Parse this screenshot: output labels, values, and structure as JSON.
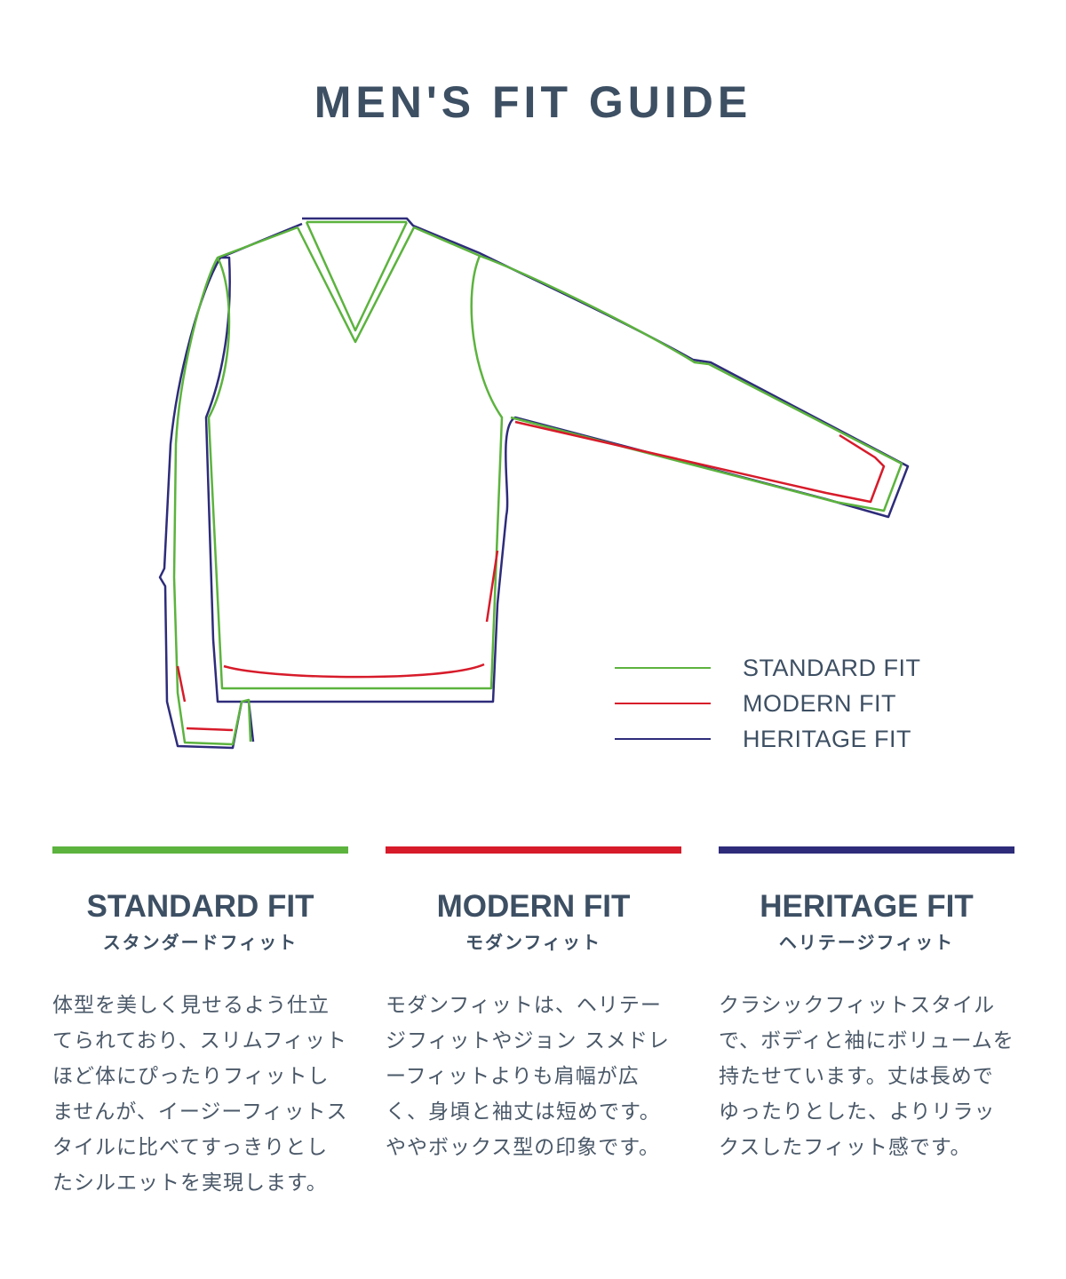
{
  "title": "MEN'S FIT GUIDE",
  "colors": {
    "standard": "#5cb33e",
    "modern": "#d71b2a",
    "heritage": "#2e2c7a",
    "text": "#3d4f63"
  },
  "legend": [
    {
      "label": "STANDARD FIT",
      "color": "#5cb33e"
    },
    {
      "label": "MODERN FIT",
      "color": "#d71b2a"
    },
    {
      "label": "HERITAGE FIT",
      "color": "#2e2c7a"
    }
  ],
  "fits": [
    {
      "title": "STANDARD FIT",
      "subtitle": "スタンダードフィット",
      "color": "#5cb33e",
      "description": "体型を美しく見せるよう仕立てられており、スリムフィットほど体にぴったりフィットしませんが、イージーフィットスタイルに比べてすっきりとしたシルエットを実現します。"
    },
    {
      "title": "MODERN FIT",
      "subtitle": "モダンフィット",
      "color": "#d71b2a",
      "description": "モダンフィットは、ヘリテージフィットやジョン スメドレーフィットよりも肩幅が広く、身頃と袖丈は短めです。ややボックス型の印象です。"
    },
    {
      "title": "HERITAGE FIT",
      "subtitle": "ヘリテージフィット",
      "color": "#2e2c7a",
      "description": "クラシックフィットスタイルで、ボディと袖にボリュームを持たせています。丈は長めでゆったりとした、よりリラックスしたフィット感です。"
    }
  ]
}
